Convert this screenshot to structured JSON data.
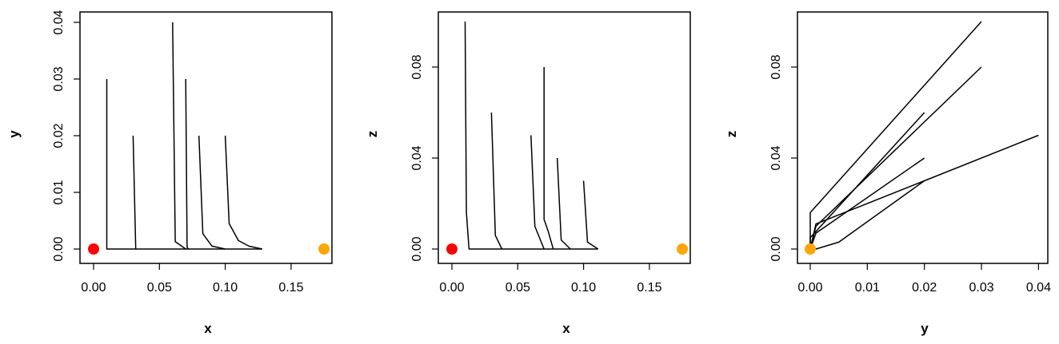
{
  "colors": {
    "start_point": "#ff0000",
    "end_point": "#ffa500",
    "lines": "#000000"
  },
  "chart_data": [
    {
      "type": "line",
      "xlabel": "x",
      "ylabel": "y",
      "xlim": [
        0,
        0.175
      ],
      "ylim": [
        0,
        0.04
      ],
      "x_ticks": [
        "0.00",
        "0.05",
        "0.10",
        "0.15"
      ],
      "y_ticks": [
        "0.00",
        "0.01",
        "0.02",
        "0.03",
        "0.04"
      ],
      "grid": false,
      "series": [
        {
          "points": [
            [
              0.01,
              0.03
            ],
            [
              0.01,
              0.0
            ],
            [
              0.128,
              0.0
            ]
          ]
        },
        {
          "points": [
            [
              0.03,
              0.02
            ],
            [
              0.032,
              0.0
            ]
          ]
        },
        {
          "points": [
            [
              0.06,
              0.04
            ],
            [
              0.062,
              0.0013
            ],
            [
              0.07,
              0.0
            ]
          ]
        },
        {
          "points": [
            [
              0.07,
              0.03
            ],
            [
              0.071,
              0.0003
            ],
            [
              0.072,
              0.0
            ]
          ]
        },
        {
          "points": [
            [
              0.08,
              0.02
            ],
            [
              0.083,
              0.0027
            ],
            [
              0.09,
              0.0005
            ],
            [
              0.1,
              0.0
            ]
          ]
        },
        {
          "points": [
            [
              0.1,
              0.02
            ],
            [
              0.103,
              0.0045
            ],
            [
              0.11,
              0.0015
            ],
            [
              0.118,
              0.0005
            ],
            [
              0.128,
              0.0
            ]
          ]
        }
      ],
      "markers": [
        {
          "x": 0.0,
          "y": 0.0,
          "color": "#ff0000"
        },
        {
          "x": 0.175,
          "y": 0.0,
          "color": "#ffa500"
        }
      ]
    },
    {
      "type": "line",
      "xlabel": "x",
      "ylabel": "z",
      "xlim": [
        0,
        0.175
      ],
      "ylim": [
        0,
        0.1
      ],
      "x_ticks": [
        "0.00",
        "0.05",
        "0.10",
        "0.15"
      ],
      "y_ticks": [
        "0.00",
        "0.04",
        "0.08"
      ],
      "grid": false,
      "series": [
        {
          "points": [
            [
              0.01,
              0.1
            ],
            [
              0.011,
              0.016
            ],
            [
              0.013,
              0.0
            ],
            [
              0.111,
              0.0
            ]
          ]
        },
        {
          "points": [
            [
              0.03,
              0.06
            ],
            [
              0.033,
              0.006
            ],
            [
              0.038,
              0.0
            ]
          ]
        },
        {
          "points": [
            [
              0.06,
              0.05
            ],
            [
              0.063,
              0.01
            ],
            [
              0.07,
              0.0
            ]
          ]
        },
        {
          "points": [
            [
              0.07,
              0.08
            ],
            [
              0.07,
              0.013
            ],
            [
              0.073,
              0.008
            ],
            [
              0.077,
              0.0
            ]
          ]
        },
        {
          "points": [
            [
              0.08,
              0.04
            ],
            [
              0.083,
              0.004
            ],
            [
              0.09,
              0.0
            ]
          ]
        },
        {
          "points": [
            [
              0.1,
              0.03
            ],
            [
              0.103,
              0.003
            ],
            [
              0.111,
              0.0
            ]
          ]
        }
      ],
      "markers": [
        {
          "x": 0.0,
          "y": 0.0,
          "color": "#ff0000"
        },
        {
          "x": 0.175,
          "y": 0.0,
          "color": "#ffa500"
        }
      ]
    },
    {
      "type": "line",
      "xlabel": "y",
      "ylabel": "z",
      "xlim": [
        0,
        0.04
      ],
      "ylim": [
        0,
        0.1
      ],
      "x_ticks": [
        "0.00",
        "0.01",
        "0.02",
        "0.03",
        "0.04"
      ],
      "y_ticks": [
        "0.00",
        "0.04",
        "0.08"
      ],
      "grid": false,
      "series": [
        {
          "points": [
            [
              0.03,
              0.1
            ],
            [
              0.0,
              0.016
            ],
            [
              0.0,
              0.0
            ]
          ]
        },
        {
          "points": [
            [
              0.02,
              0.06
            ],
            [
              0.0,
              0.005
            ],
            [
              0.0,
              0.0
            ]
          ]
        },
        {
          "points": [
            [
              0.03,
              0.08
            ],
            [
              0.001,
              0.01
            ],
            [
              0.0,
              0.0
            ]
          ]
        },
        {
          "points": [
            [
              0.02,
              0.04
            ],
            [
              0.001,
              0.007
            ],
            [
              0.0,
              0.0
            ]
          ]
        },
        {
          "points": [
            [
              0.04,
              0.05
            ],
            [
              0.02,
              0.03
            ],
            [
              0.001,
              0.011
            ],
            [
              0.0,
              0.0
            ]
          ]
        },
        {
          "points": [
            [
              0.02,
              0.03
            ],
            [
              0.005,
              0.003
            ],
            [
              0.001,
              0.0
            ]
          ]
        }
      ],
      "markers": [
        {
          "x": 0.0,
          "y": 0.0,
          "color": "#ffa500"
        }
      ]
    }
  ]
}
